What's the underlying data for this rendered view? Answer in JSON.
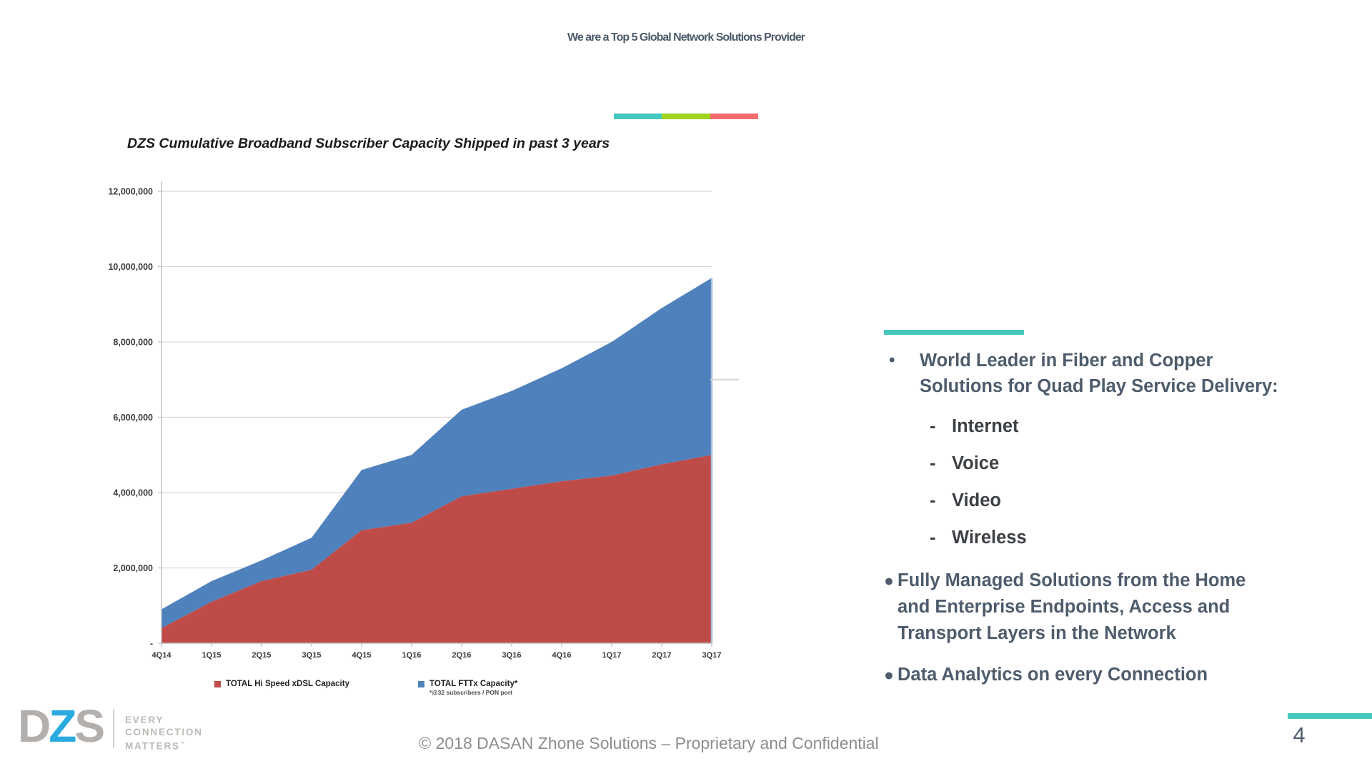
{
  "header": {
    "title": "We are a Top 5 Global Network Solutions Provider",
    "underline_colors": [
      "#45c8bd",
      "#9fd41f",
      "#f4696b"
    ]
  },
  "chart_data": {
    "type": "area",
    "stacked": true,
    "title": "DZS Cumulative Broadband Subscriber Capacity Shipped in past 3 years",
    "categories": [
      "4Q14",
      "1Q15",
      "2Q15",
      "3Q15",
      "4Q15",
      "1Q16",
      "2Q16",
      "3Q16",
      "4Q16",
      "1Q17",
      "2Q17",
      "3Q17"
    ],
    "series": [
      {
        "name": "TOTAL Hi Speed xDSL Capacity",
        "color": "#bf4b48",
        "values": [
          400000,
          1100000,
          1650000,
          1950000,
          3000000,
          3200000,
          3900000,
          4100000,
          4300000,
          4450000,
          4750000,
          5000000
        ]
      },
      {
        "name": "TOTAL FTTx Capacity*",
        "color": "#4f81bd",
        "footnote": "*@32 subscribers / PON port",
        "values": [
          500000,
          550000,
          550000,
          850000,
          1600000,
          1800000,
          2300000,
          2600000,
          3000000,
          3550000,
          4150000,
          4700000
        ]
      }
    ],
    "stacked_totals": [
      900000,
      1650000,
      2200000,
      2800000,
      4600000,
      5000000,
      6200000,
      6700000,
      7300000,
      8000000,
      8900000,
      9700000
    ],
    "ylim": [
      0,
      12000000
    ],
    "y_ticks": [
      {
        "value": 12000000,
        "label": "12,000,000"
      },
      {
        "value": 10000000,
        "label": "10,000,000"
      },
      {
        "value": 8000000,
        "label": "8,000,000"
      },
      {
        "value": 6000000,
        "label": "6,000,000"
      },
      {
        "value": 4000000,
        "label": "4,000,000"
      },
      {
        "value": 2000000,
        "label": "2,000,000"
      },
      {
        "value": 0,
        "label": "-"
      }
    ],
    "grid": true,
    "legend_position": "bottom"
  },
  "right_panel": {
    "accent_bar_color": "#45c8bd",
    "bullet1": {
      "marker": "•",
      "text": "World Leader in Fiber and Copper\nSolutions for Quad Play Service Delivery:"
    },
    "sub_items": [
      {
        "marker": "-",
        "label": "Internet"
      },
      {
        "marker": "-",
        "label": "Voice"
      },
      {
        "marker": "-",
        "label": "Video"
      },
      {
        "marker": "-",
        "label": "Wireless"
      }
    ],
    "bullet2": {
      "marker": "●",
      "text": "Fully Managed Solutions from the Home\nand Enterprise Endpoints, Access and\nTransport Layers in the Network"
    },
    "bullet3": {
      "marker": "●",
      "text": "Data Analytics on every Connection"
    }
  },
  "footer": {
    "logo": {
      "letter_d": "D",
      "letter_z": "Z",
      "letter_s": "S",
      "gray_color": "#b3afac",
      "blue_color": "#29abe2",
      "tagline_line1": "EVERY",
      "tagline_line2": "CONNECTION",
      "tagline_line3": "MATTERS",
      "trademark": "™",
      "tagline_color": "#bdb9b5"
    },
    "copyright": "© 2018 DASAN Zhone Solutions – Proprietary and Confidential",
    "accent_color": "#45c8bd",
    "page_number": "4"
  }
}
